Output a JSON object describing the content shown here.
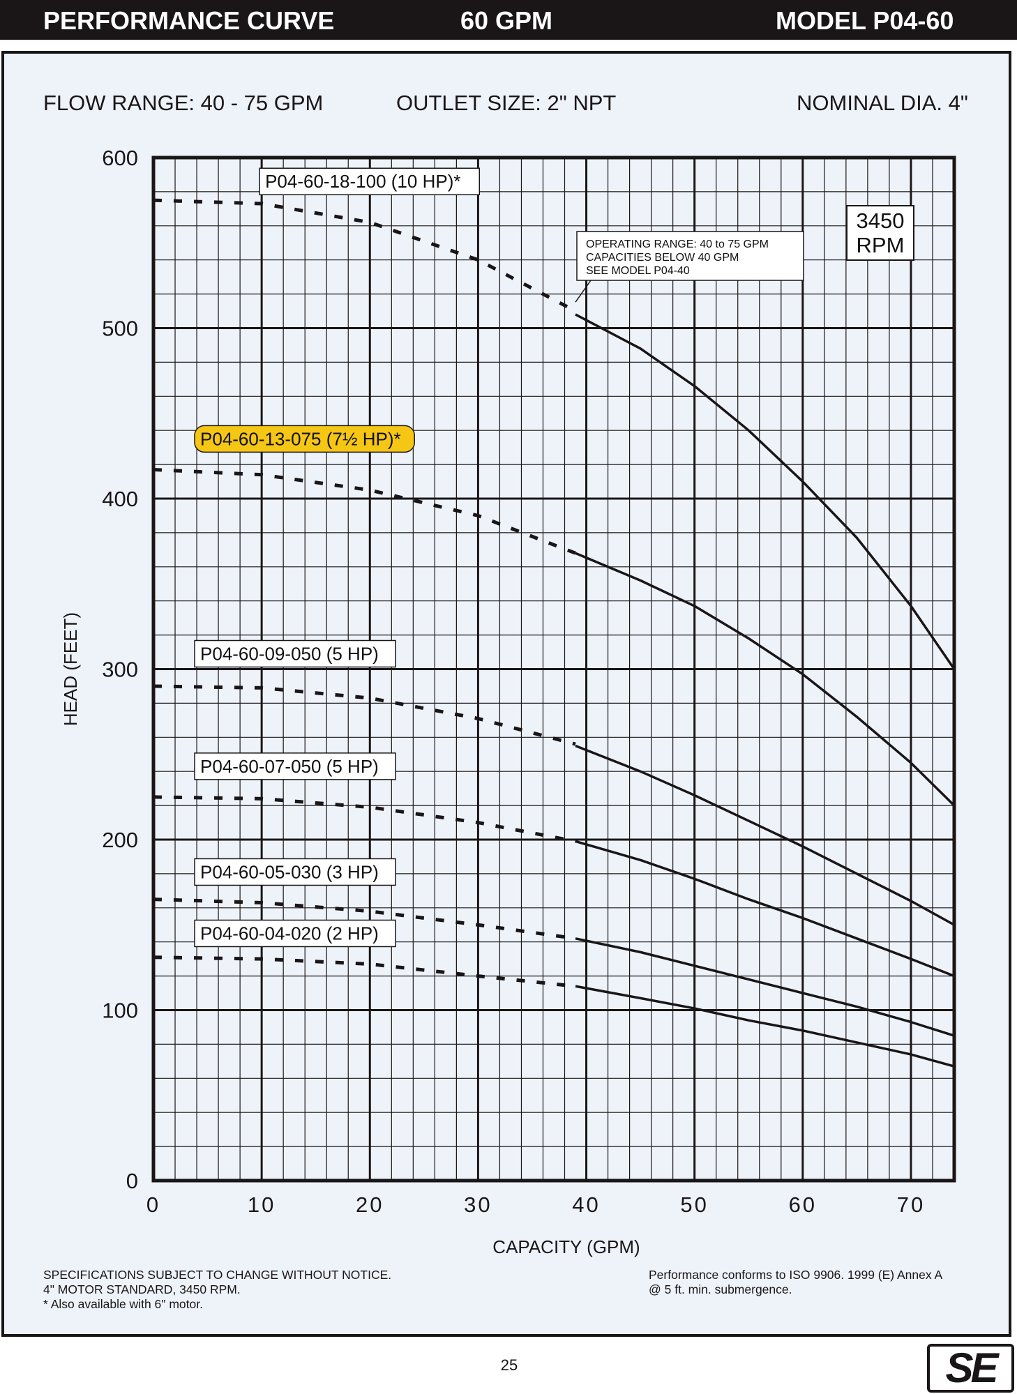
{
  "header": {
    "left": "PERFORMANCE CURVE",
    "center": "60 GPM",
    "right": "MODEL  P04-60"
  },
  "info": {
    "flow_range": "FLOW RANGE: 40 - 75 GPM",
    "outlet_size": "OUTLET SIZE: 2\" NPT",
    "nominal_dia": "NOMINAL DIA. 4\""
  },
  "footer": {
    "left_lines": [
      "SPECIFICATIONS SUBJECT TO CHANGE WITHOUT NOTICE.",
      "4\" MOTOR STANDARD, 3450 RPM.",
      "* Also available with 6\" motor."
    ],
    "right_lines": [
      "Performance conforms to ISO 9906. 1999 (E) Annex A",
      "@ 5 ft. min. submergence."
    ],
    "page_number": "25",
    "logo": "SE"
  },
  "colors": {
    "header_bg": "#1a1617",
    "panel_bg": "#eef3fa",
    "highlight": "#f6c614",
    "ink": "#1a1617"
  },
  "chart_data": {
    "type": "line",
    "xlabel": "CAPACITY (GPM)",
    "ylabel": "HEAD (FEET)",
    "xlim": [
      0,
      74
    ],
    "ylim": [
      0,
      600
    ],
    "xticks": [
      0,
      10,
      20,
      30,
      40,
      50,
      60,
      70
    ],
    "yticks": [
      0,
      100,
      200,
      300,
      400,
      500,
      600
    ],
    "x_minor_step": 2,
    "y_minor_step": 20,
    "grid": true,
    "rpm_box": [
      "3450",
      "RPM"
    ],
    "annotation": {
      "lines": [
        "OPERATING RANGE: 40 to 75 GPM",
        "CAPACITIES BELOW 40 GPM",
        "SEE MODEL P04-40"
      ],
      "points_to": [
        39,
        512
      ]
    },
    "series": [
      {
        "name": "P04-60-18-100 (10 HP)*",
        "label_at": [
          8,
          586
        ],
        "highlight": false,
        "dashed": [
          [
            0,
            575
          ],
          [
            10,
            573
          ],
          [
            20,
            562
          ],
          [
            30,
            540
          ],
          [
            39,
            510
          ]
        ],
        "solid": [
          [
            39,
            508
          ],
          [
            45,
            488
          ],
          [
            50,
            466
          ],
          [
            55,
            440
          ],
          [
            60,
            410
          ],
          [
            65,
            377
          ],
          [
            70,
            337
          ],
          [
            74,
            300
          ]
        ]
      },
      {
        "name": "P04-60-13-075 (7½ HP)*",
        "label_at": [
          2,
          435
        ],
        "highlight": true,
        "dashed": [
          [
            0,
            417
          ],
          [
            10,
            414
          ],
          [
            20,
            405
          ],
          [
            30,
            390
          ],
          [
            39,
            368
          ]
        ],
        "solid": [
          [
            39,
            368
          ],
          [
            45,
            352
          ],
          [
            50,
            337
          ],
          [
            55,
            318
          ],
          [
            60,
            297
          ],
          [
            65,
            272
          ],
          [
            70,
            245
          ],
          [
            74,
            220
          ]
        ]
      },
      {
        "name": "P04-60-09-050 (5 HP)",
        "label_at": [
          2,
          309
        ],
        "highlight": false,
        "dashed": [
          [
            0,
            290
          ],
          [
            10,
            289
          ],
          [
            20,
            283
          ],
          [
            30,
            271
          ],
          [
            39,
            256
          ]
        ],
        "solid": [
          [
            39,
            255
          ],
          [
            45,
            240
          ],
          [
            50,
            226
          ],
          [
            55,
            211
          ],
          [
            60,
            196
          ],
          [
            65,
            180
          ],
          [
            70,
            164
          ],
          [
            74,
            150
          ]
        ]
      },
      {
        "name": "P04-60-07-050 (5 HP)",
        "label_at": [
          2,
          243
        ],
        "highlight": false,
        "dashed": [
          [
            0,
            225
          ],
          [
            10,
            224
          ],
          [
            20,
            219
          ],
          [
            30,
            210
          ],
          [
            39,
            199
          ]
        ],
        "solid": [
          [
            39,
            199
          ],
          [
            45,
            188
          ],
          [
            50,
            177
          ],
          [
            55,
            165
          ],
          [
            60,
            154
          ],
          [
            65,
            142
          ],
          [
            70,
            130
          ],
          [
            74,
            120
          ]
        ]
      },
      {
        "name": "P04-60-05-030 (3 HP)",
        "label_at": [
          2,
          181
        ],
        "highlight": false,
        "dashed": [
          [
            0,
            165
          ],
          [
            10,
            163
          ],
          [
            20,
            158
          ],
          [
            30,
            150
          ],
          [
            39,
            142
          ]
        ],
        "solid": [
          [
            39,
            142
          ],
          [
            45,
            134
          ],
          [
            50,
            126
          ],
          [
            55,
            118
          ],
          [
            60,
            110
          ],
          [
            65,
            102
          ],
          [
            70,
            93
          ],
          [
            74,
            85
          ]
        ]
      },
      {
        "name": "P04-60-04-020 (2 HP)",
        "label_at": [
          2,
          145
        ],
        "highlight": false,
        "dashed": [
          [
            0,
            131
          ],
          [
            10,
            130
          ],
          [
            20,
            127
          ],
          [
            30,
            120
          ],
          [
            39,
            114
          ]
        ],
        "solid": [
          [
            39,
            114
          ],
          [
            45,
            107
          ],
          [
            50,
            101
          ],
          [
            55,
            94
          ],
          [
            60,
            88
          ],
          [
            65,
            81
          ],
          [
            70,
            74
          ],
          [
            74,
            67
          ]
        ]
      }
    ]
  }
}
